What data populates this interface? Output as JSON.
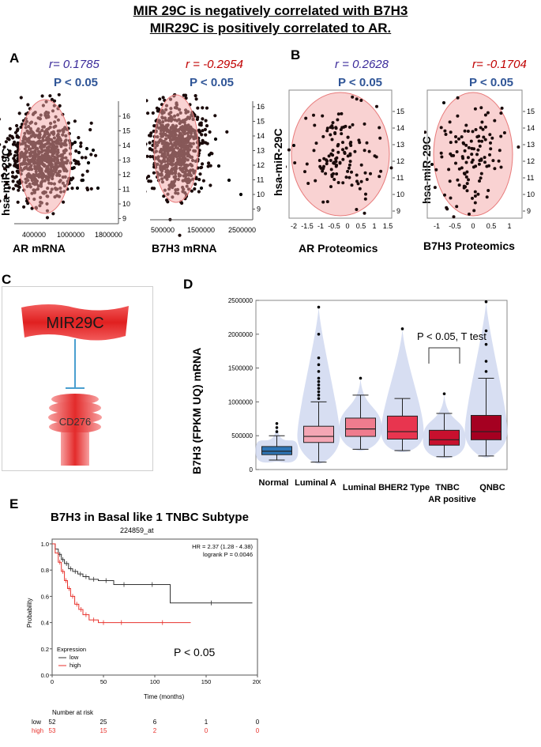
{
  "header": {
    "line1": "MIR 29C is negatively correlated with B7H3",
    "line2": "MIR29C is  positively correlated to AR."
  },
  "panels": {
    "A": {
      "letter": "A",
      "plot1": {
        "r": "r= 0.1785",
        "p": "P < 0.05",
        "xlabel": "AR mRNA",
        "ylabel": "hsa-miR-29C",
        "xticks": [
          "400000",
          "1000000",
          "1800000"
        ],
        "yticks": [
          "16",
          "15",
          "14",
          "13",
          "12",
          "11",
          "10",
          "9"
        ],
        "r_color": "#3a2a9a"
      },
      "plot2": {
        "r": "r = -0.2954",
        "p": "P < 0.05",
        "xlabel": "B7H3 mRNA",
        "ylabel": "hsa-miR-29C",
        "xticks": [
          "500000",
          "1500000",
          "2500000"
        ],
        "yticks": [
          "16",
          "15",
          "14",
          "13",
          "12",
          "11",
          "10",
          "9"
        ],
        "r_color": "#c00000"
      }
    },
    "B": {
      "letter": "B",
      "plot1": {
        "r": "r = 0.2628",
        "p": "P < 0.05",
        "xlabel": "AR Proteomics",
        "ylabel": "hsa-miR-29C",
        "xticks": [
          "-2",
          "-1.5",
          "-1",
          "-0.5",
          "0",
          "0.5",
          "1",
          "1.5"
        ],
        "yticks": [
          "15",
          "14",
          "13",
          "12",
          "11",
          "10",
          "9"
        ],
        "r_color": "#3a2a9a"
      },
      "plot2": {
        "r": "r= -0.1704",
        "p": "P < 0.05",
        "xlabel": "B7H3 Proteomics",
        "xticks": [
          "-1",
          "-0.5",
          "0",
          "0.5",
          "1"
        ],
        "yticks": [
          "15",
          "14",
          "13",
          "12",
          "11",
          "10",
          "9"
        ],
        "r_color": "#c00000"
      }
    },
    "C": {
      "letter": "C",
      "top_label": "MIR29C",
      "bottom_label": "CD276"
    },
    "D": {
      "letter": "D",
      "title": "",
      "ylabel": "B7H3 (FPKM UQ) mRNA",
      "annotation": "P < 0.05, T test"
    },
    "E": {
      "letter": "E",
      "title": "B7H3 in Basal like  1 TNBC Subtype",
      "subtitle": "224859_at",
      "hr": "HR = 2.37 (1.28 - 4.38)",
      "logrank": "logrank P = 0.0046",
      "pnote": "P < 0.05",
      "ylabel": "Probability",
      "xlabel": "Time (months)",
      "legend_title": "Expression",
      "legend_low": "low",
      "legend_high": "high",
      "risk_title": "Number at risk",
      "risk_low_label": "low",
      "risk_high_label": "high",
      "risk_low": [
        "52",
        "25",
        "6",
        "1",
        "0"
      ],
      "risk_high": [
        "53",
        "15",
        "2",
        "0",
        "0"
      ]
    }
  },
  "chart_data": [
    {
      "type": "scatter",
      "title": "AR mRNA vs hsa-miR-29C",
      "xlabel": "AR mRNA",
      "ylabel": "hsa-miR-29C",
      "ylim": [
        9,
        16.5
      ],
      "xlim": [
        0,
        2200000
      ],
      "annotation": "r= 0.1785, P < 0.05"
    },
    {
      "type": "scatter",
      "title": "B7H3 mRNA vs hsa-miR-29C",
      "xlabel": "B7H3 mRNA",
      "ylabel": "hsa-miR-29C",
      "ylim": [
        9,
        16.5
      ],
      "xlim": [
        0,
        2700000
      ],
      "annotation": "r = -0.2954, P < 0.05"
    },
    {
      "type": "scatter",
      "title": "AR Proteomics vs hsa-miR-29C",
      "xlabel": "AR Proteomics",
      "ylabel": "hsa-miR-29C",
      "ylim": [
        9,
        15.5
      ],
      "xlim": [
        -2,
        1.6
      ],
      "annotation": "r = 0.2628, P < 0.05"
    },
    {
      "type": "scatter",
      "title": "B7H3 Proteomics vs hsa-miR-29C",
      "xlabel": "B7H3 Proteomics",
      "ylabel": "hsa-miR-29C",
      "ylim": [
        9,
        15.5
      ],
      "xlim": [
        -1.2,
        1.2
      ],
      "annotation": "r= -0.1704, P < 0.05"
    },
    {
      "type": "bar",
      "subtype": "box_violin",
      "ylabel": "B7H3 (FPKM UQ) mRNA",
      "ylim": [
        0,
        2500000
      ],
      "yticks": [
        0,
        500000,
        1000000,
        1500000,
        2000000,
        2500000
      ],
      "categories": [
        "Normal",
        "Luminal A",
        "Luminal B",
        "HER2 Type",
        "TNBC",
        "QNBC"
      ],
      "category_sublabels": [
        "",
        "",
        "",
        "",
        "AR positive",
        ""
      ],
      "colors": [
        "#2e75b6",
        "#f4a6b4",
        "#ef7c8e",
        "#e8354f",
        "#c8102e",
        "#a50021"
      ],
      "series": [
        {
          "name": "median",
          "values": [
            270000,
            490000,
            600000,
            560000,
            440000,
            560000
          ]
        },
        {
          "name": "q1",
          "values": [
            220000,
            400000,
            490000,
            450000,
            360000,
            440000
          ]
        },
        {
          "name": "q3",
          "values": [
            340000,
            640000,
            760000,
            790000,
            580000,
            800000
          ]
        },
        {
          "name": "whisker_low",
          "values": [
            140000,
            110000,
            300000,
            280000,
            190000,
            200000
          ]
        },
        {
          "name": "whisker_high",
          "values": [
            500000,
            1000000,
            1100000,
            1050000,
            830000,
            1350000
          ]
        }
      ],
      "outliers": {
        "Normal": [
          560000,
          620000,
          680000
        ],
        "Luminal A": [
          1050000,
          1100000,
          1150000,
          1200000,
          1250000,
          1300000,
          1350000,
          1450000,
          1550000,
          1650000,
          2000000,
          2400000
        ],
        "Luminal B": [
          1350000
        ],
        "HER2 Type": [
          2080000
        ],
        "TNBC": [
          1120000
        ],
        "QNBC": [
          1450000,
          1600000,
          1850000,
          2050000,
          2480000
        ]
      },
      "annotation": "P < 0.05, T test"
    },
    {
      "type": "line",
      "title": "B7H3 in Basal like  1 TNBC Subtype",
      "xlabel": "Time (months)",
      "ylabel": "Probability",
      "xlim": [
        0,
        200
      ],
      "ylim": [
        0,
        1.0
      ],
      "xticks": [
        0,
        50,
        100,
        150,
        200
      ],
      "yticks": [
        0,
        0.2,
        0.4,
        0.6,
        0.8,
        1.0
      ],
      "series": [
        {
          "name": "low",
          "color": "#333333",
          "x": [
            0,
            3,
            6,
            9,
            12,
            16,
            20,
            25,
            30,
            36,
            45,
            60,
            80,
            115,
            195
          ],
          "y": [
            1.0,
            0.96,
            0.92,
            0.88,
            0.85,
            0.81,
            0.79,
            0.77,
            0.75,
            0.73,
            0.72,
            0.69,
            0.69,
            0.55,
            0.55
          ]
        },
        {
          "name": "high",
          "color": "#e8322c",
          "x": [
            0,
            3,
            6,
            9,
            12,
            15,
            18,
            22,
            26,
            30,
            36,
            45,
            55,
            80,
            135
          ],
          "y": [
            1.0,
            0.93,
            0.86,
            0.79,
            0.72,
            0.66,
            0.6,
            0.54,
            0.5,
            0.46,
            0.42,
            0.4,
            0.4,
            0.4,
            0.4
          ]
        }
      ],
      "annotation": "HR = 2.37 (1.28 - 4.38); logrank P = 0.0046"
    }
  ]
}
